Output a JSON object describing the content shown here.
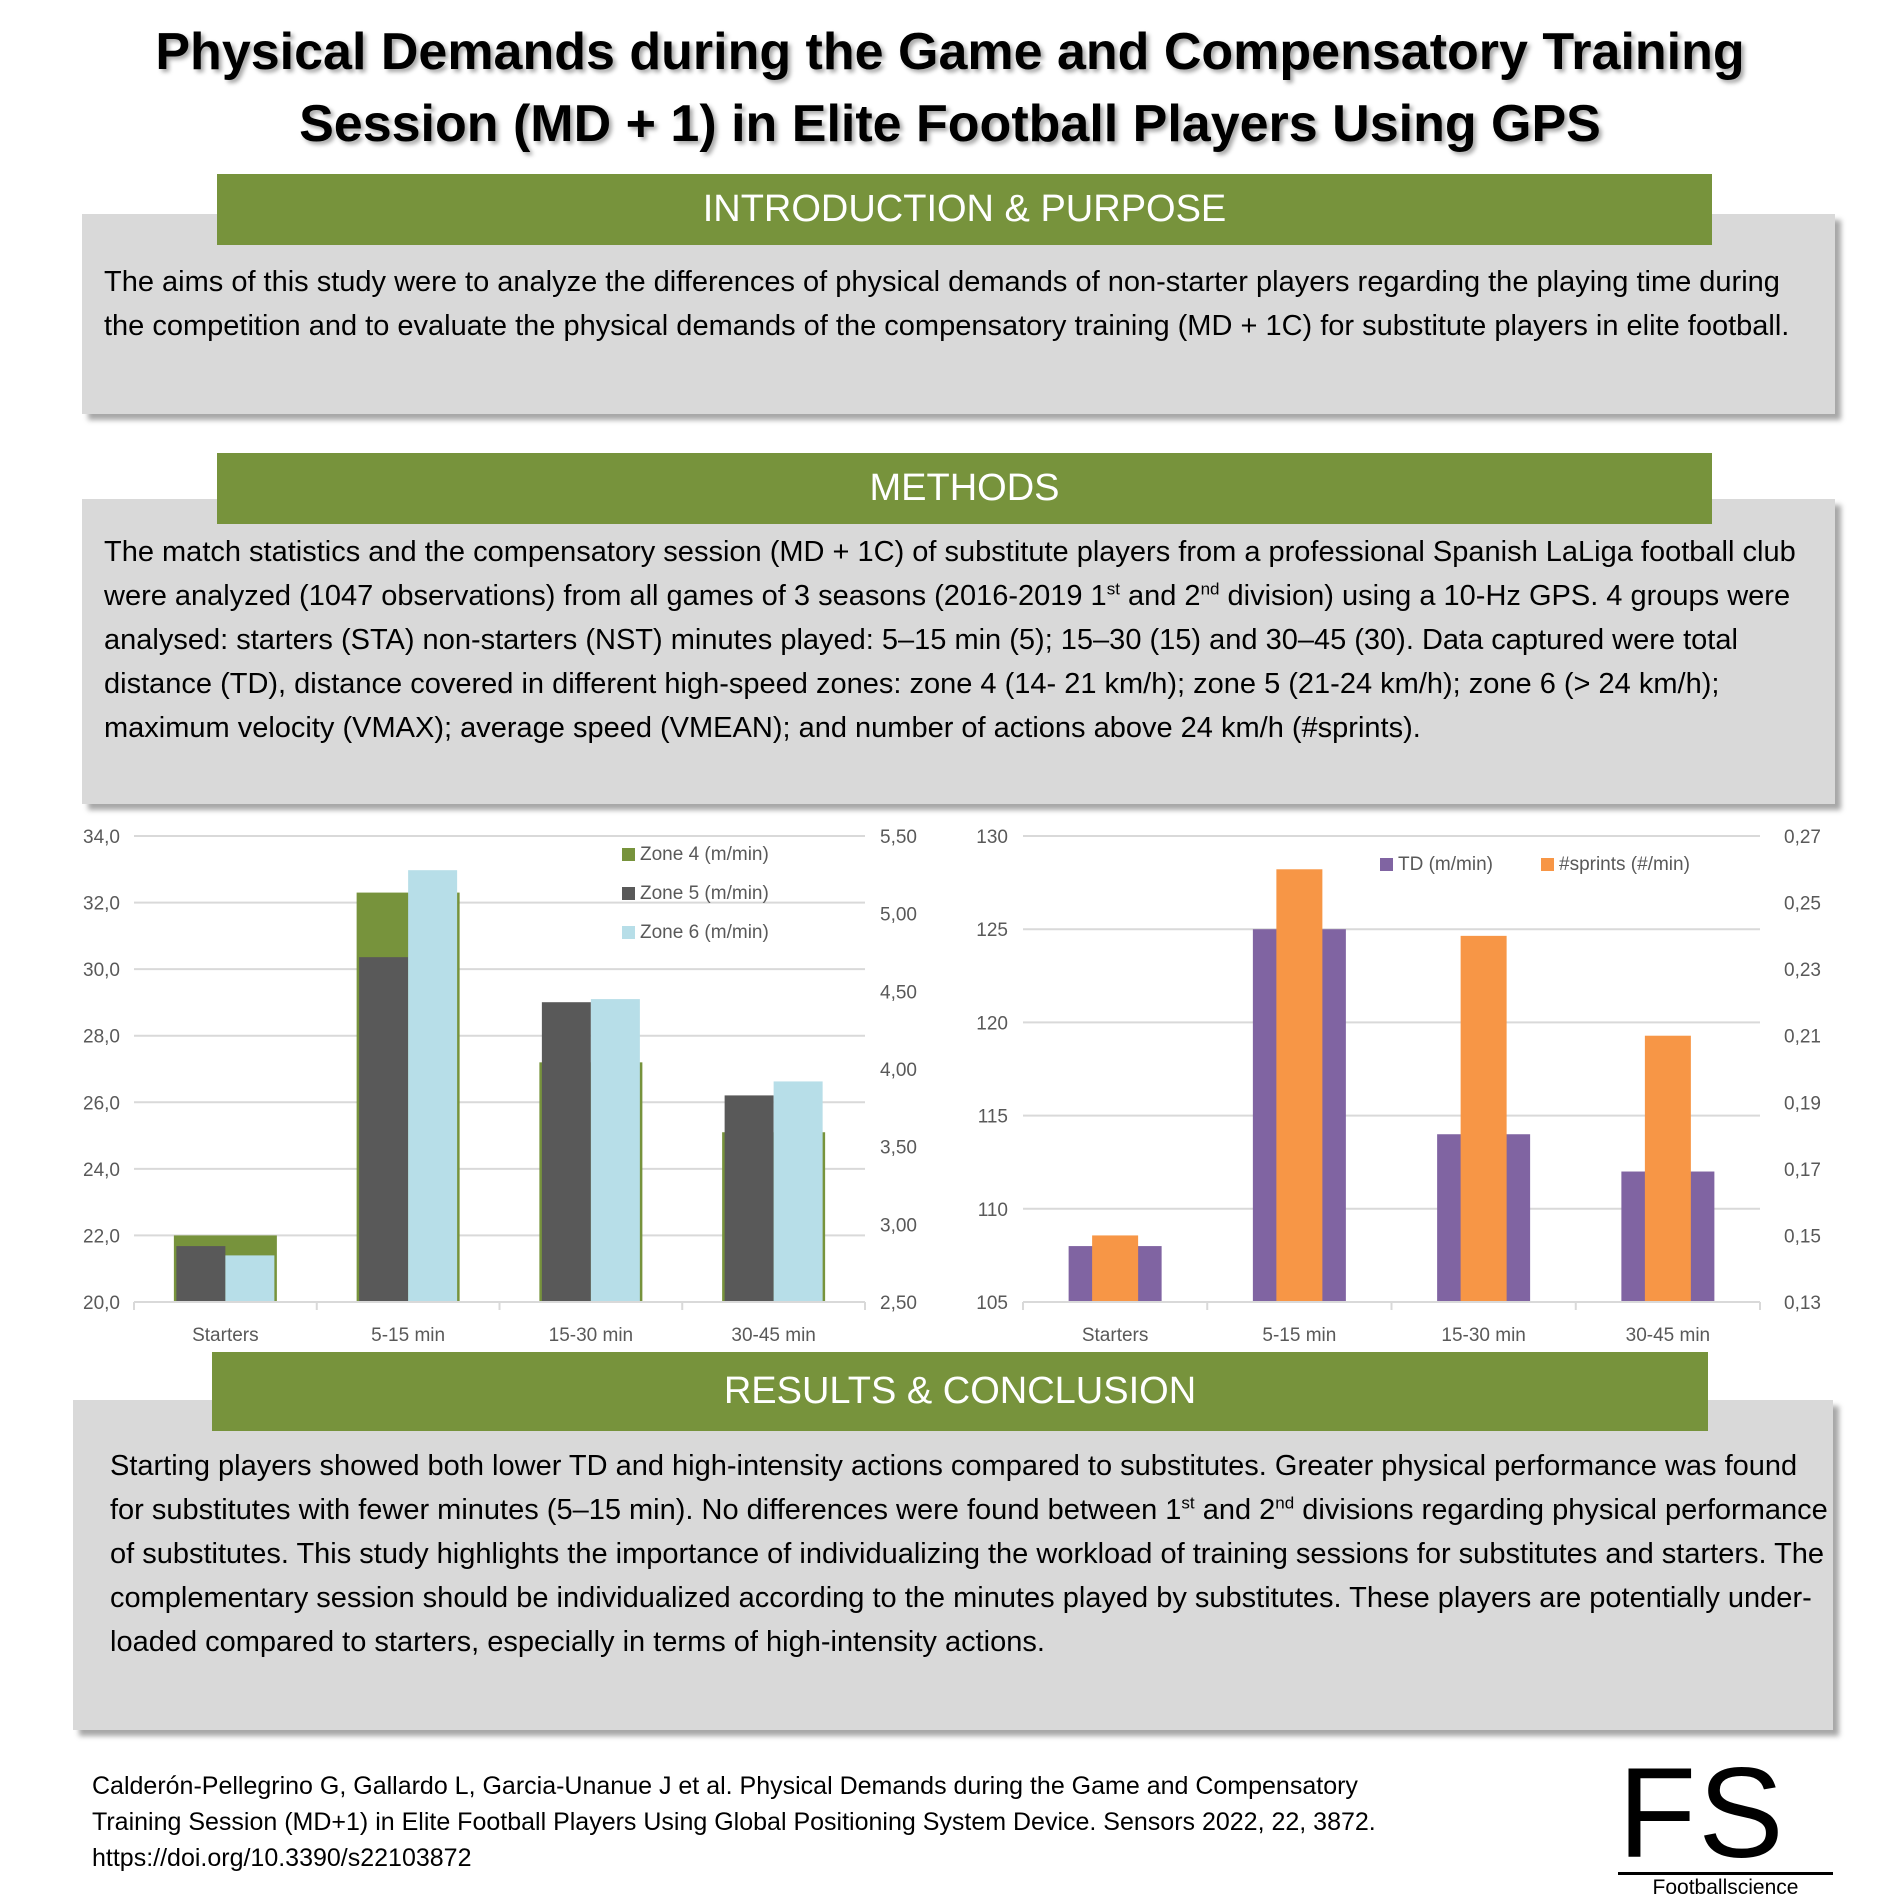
{
  "title": {
    "line1": "Physical Demands during the Game and Compensatory Training",
    "line2": "Session (MD + 1) in Elite Football Players Using GPS"
  },
  "intro": {
    "heading": "INTRODUCTION & PURPOSE",
    "text": "The aims of this study were to analyze the differences of physical demands of non-starter players regarding the playing time during the competition and to evaluate the physical demands of the compensatory training (MD + 1C) for substitute players in elite football."
  },
  "methods": {
    "heading": "METHODS",
    "parts": [
      "The match statistics and the compensatory session (MD + 1C) of substitute players from a professional Spanish LaLiga football club were analyzed (1047 observations) from all games of 3 seasons (2016-2019 1",
      "st",
      " and 2",
      "nd",
      " division) using a 10-Hz GPS. 4 groups were analysed: starters (STA) non-starters (NST) minutes played: 5–15 min (5); 15–30 (15) and 30–45 (30). Data captured were total distance (TD), distance covered in different high-speed zones: zone 4 (14- 21 km/h); zone 5 (21-24 km/h); zone 6 (> 24 km/h); maximum velocity (VMAX); average speed (VMEAN); and number of actions above 24 km/h (#sprints)."
    ]
  },
  "results": {
    "heading": "RESULTS & CONCLUSION",
    "parts": [
      "Starting players showed both lower TD and high-intensity actions compared to substitutes. Greater physical performance was found for substitutes with fewer minutes (5–15 min). No differences were found between 1",
      "st",
      " and 2",
      "nd",
      " divisions regarding physical performance of substitutes. This study highlights the importance of individualizing the workload of training sessions for substitutes and starters. The complementary session should be individualized according to the minutes played by substitutes. These players are potentially under-loaded compared to starters, especially in terms of high-intensity actions."
    ]
  },
  "citation": {
    "line1": "Calderón-Pellegrino G, Gallardo L, Garcia-Unanue J et al. Physical Demands during the Game and Compensatory",
    "line2": "Training Session (MD+1) in Elite Football Players Using Global Positioning System Device. Sensors 2022, 22, 3872.",
    "line3": "https://doi.org/10.3390/s22103872"
  },
  "logo": {
    "mark": "FS",
    "name": "Footballscience"
  },
  "chart_data": [
    {
      "type": "bar",
      "categories": [
        "Starters",
        "5-15 min",
        "15-30 min",
        "30-45 min"
      ],
      "ylim": [
        20,
        34
      ],
      "yticks": [
        "20,0",
        "22,0",
        "24,0",
        "26,0",
        "28,0",
        "30,0",
        "32,0",
        "34,0"
      ],
      "y2lim": [
        2.5,
        5.5
      ],
      "y2ticks": [
        "2,50",
        "3,00",
        "3,50",
        "4,00",
        "4,50",
        "5,00",
        "5,50"
      ],
      "grid": true,
      "legend": "top-right",
      "series": [
        {
          "name": "Zone 4 (m/min)",
          "axis": "left",
          "color": "#77933c",
          "values": [
            22.0,
            32.3,
            27.2,
            25.1
          ]
        },
        {
          "name": "Zone 5 (m/min)",
          "axis": "right",
          "color": "#595959",
          "values": [
            2.86,
            4.72,
            4.43,
            3.83
          ]
        },
        {
          "name": "Zone 6 (m/min)",
          "axis": "right",
          "color": "#b7dee8",
          "values": [
            2.8,
            5.28,
            4.45,
            3.92
          ]
        }
      ]
    },
    {
      "type": "bar",
      "categories": [
        "Starters",
        "5-15 min",
        "15-30 min",
        "30-45 min"
      ],
      "ylim": [
        105,
        130
      ],
      "yticks": [
        "105",
        "110",
        "115",
        "120",
        "125",
        "130"
      ],
      "y2lim": [
        0.13,
        0.27
      ],
      "y2ticks": [
        "0,13",
        "0,15",
        "0,17",
        "0,19",
        "0,21",
        "0,23",
        "0,25",
        "0,27"
      ],
      "grid": true,
      "legend": "top-right",
      "series": [
        {
          "name": "TD (m/min)",
          "axis": "left",
          "color": "#8064a2",
          "values": [
            108,
            125,
            114,
            112
          ]
        },
        {
          "name": "#sprints (#/min)",
          "axis": "right",
          "color": "#f79646",
          "values": [
            0.15,
            0.26,
            0.24,
            0.21
          ]
        }
      ]
    }
  ]
}
